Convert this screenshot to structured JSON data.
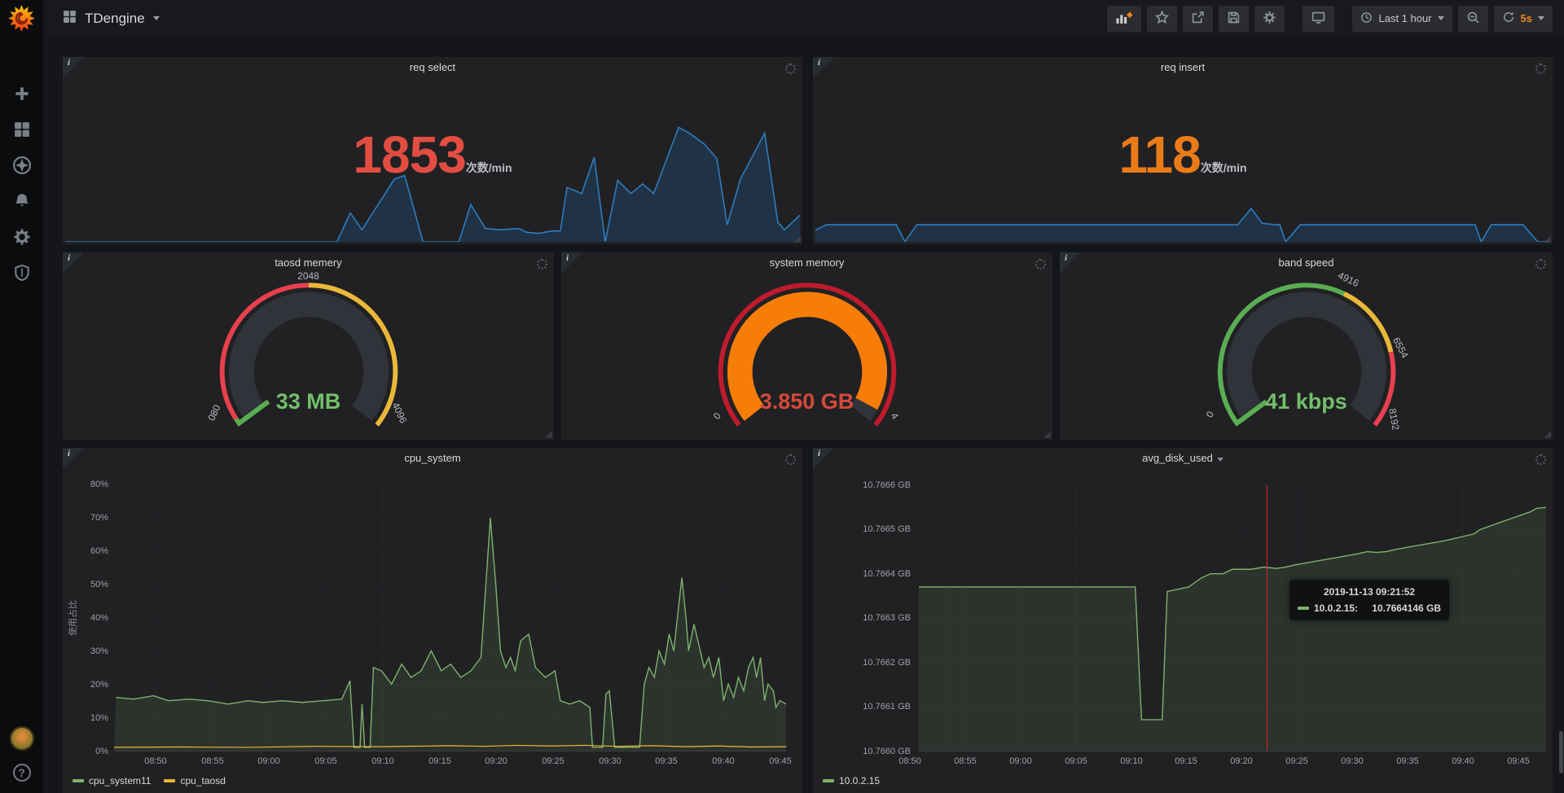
{
  "glyphs": {
    "info": "i",
    "help": "?"
  },
  "nav": {
    "title": "TDengine",
    "time_range": "Last 1 hour",
    "refresh_interval": "5s",
    "toolbar_icons": [
      "add-panel",
      "star",
      "share",
      "save",
      "settings",
      "cycle-view",
      "clock",
      "zoom-out",
      "refresh"
    ]
  },
  "sidebar": {
    "icons": [
      "grafana-logo",
      "plus",
      "dashboards-grid",
      "explore-compass",
      "alerting-bell",
      "configuration-gear",
      "server-admin-shield",
      "user-avatar",
      "help"
    ]
  },
  "colors": {
    "red": "#e24d42",
    "orange": "#eb7b18",
    "green": "#73bf69",
    "series_green": "#7eb26d",
    "yellow": "#eab839",
    "blue_line": "#2d7cbf",
    "gauge_red": "#e8404e",
    "gauge_orange": "#f77d09",
    "crosshair_red": "#e02424"
  },
  "panels": {
    "req_select": {
      "title": "req select",
      "value": "1853",
      "unit": "次数/min",
      "value_color": "#e24d42",
      "spark": {
        "ylim": [
          0,
          8400
        ],
        "points": [
          [
            0,
            0
          ],
          [
            37,
            0
          ],
          [
            38.8,
            2016
          ],
          [
            40.4,
            840
          ],
          [
            44.8,
            4368
          ],
          [
            46.2,
            4620
          ],
          [
            48.7,
            0
          ],
          [
            53.6,
            0
          ],
          [
            55.2,
            2604
          ],
          [
            57.2,
            924
          ],
          [
            59.2,
            840
          ],
          [
            61.8,
            924
          ],
          [
            62.7,
            672
          ],
          [
            64.4,
            588
          ],
          [
            66.2,
            756
          ],
          [
            67.4,
            756
          ],
          [
            68.3,
            3780
          ],
          [
            69.2,
            3612
          ],
          [
            70.3,
            3360
          ],
          [
            72,
            5880
          ],
          [
            73.5,
            0
          ],
          [
            75.2,
            4284
          ],
          [
            77,
            3360
          ],
          [
            78.6,
            4032
          ],
          [
            80.1,
            3360
          ],
          [
            83.5,
            7980
          ],
          [
            85,
            7560
          ],
          [
            87,
            6804
          ],
          [
            88.7,
            5796
          ],
          [
            90.1,
            1176
          ],
          [
            91.9,
            4368
          ],
          [
            95.2,
            7560
          ],
          [
            97,
            1344
          ],
          [
            97.9,
            840
          ],
          [
            100,
            1853
          ]
        ]
      }
    },
    "req_insert": {
      "title": "req insert",
      "value": "118",
      "unit": "次数/min",
      "value_color": "#eb7b18",
      "spark": {
        "ylim": [
          0,
          830
        ],
        "points": [
          [
            0,
            80
          ],
          [
            1.5,
            118
          ],
          [
            11,
            118
          ],
          [
            12.2,
            0
          ],
          [
            13.8,
            118
          ],
          [
            57.5,
            118
          ],
          [
            59.3,
            230
          ],
          [
            60.8,
            128
          ],
          [
            62.5,
            118
          ],
          [
            63.2,
            118
          ],
          [
            64,
            0
          ],
          [
            66,
            118
          ],
          [
            89.8,
            118
          ],
          [
            90.6,
            0
          ],
          [
            92,
            118
          ],
          [
            96.3,
            118
          ],
          [
            98.3,
            0
          ],
          [
            100,
            0
          ]
        ]
      }
    },
    "taosd_memory": {
      "title": "taosd memery",
      "value": "33 MB",
      "value_color": "#73bf69",
      "scale": {
        "top": "2048",
        "left": "080",
        "right": "4096"
      }
    },
    "system_memory": {
      "title": "system memory",
      "value": "3.850 GB",
      "value_color": "#d44a3a",
      "scale": {
        "min": "0",
        "max": "4"
      }
    },
    "band_speed": {
      "title": "band speed",
      "value": "41 kbps",
      "value_color": "#73bf69",
      "scale": {
        "min": "0",
        "t1": "4916",
        "t2": "6554",
        "max": "8192"
      }
    },
    "cpu_system": {
      "title": "cpu_system",
      "y_axis_label": "使用占比",
      "yticks": [
        "80%",
        "70%",
        "60%",
        "50%",
        "40%",
        "30%",
        "20%",
        "10%",
        "0%"
      ],
      "xticks": [
        "08:50",
        "08:55",
        "09:00",
        "09:05",
        "09:10",
        "09:15",
        "09:20",
        "09:25",
        "09:30",
        "09:35",
        "09:40",
        "09:45"
      ],
      "ylim": [
        0,
        80
      ],
      "legend": [
        {
          "label": "cpu_system11",
          "color": "#7eb26d"
        },
        {
          "label": "cpu_taosd",
          "color": "#eab839"
        }
      ],
      "series": [
        {
          "name": "cpu_system11",
          "points": [
            [
              0.3,
              16
            ],
            [
              2.9,
              15.5
            ],
            [
              5.9,
              16.5
            ],
            [
              8.1,
              15
            ],
            [
              11.1,
              15.5
            ],
            [
              14,
              15
            ],
            [
              17,
              14
            ],
            [
              19.9,
              15
            ],
            [
              22.1,
              14.5
            ],
            [
              25.1,
              15
            ],
            [
              28,
              14.5
            ],
            [
              31,
              15
            ],
            [
              33.9,
              15.5
            ],
            [
              35.1,
              21
            ],
            [
              35.7,
              1
            ],
            [
              36.6,
              1
            ],
            [
              36.9,
              14
            ],
            [
              37.3,
              1
            ],
            [
              38.1,
              1
            ],
            [
              38.6,
              25
            ],
            [
              39.8,
              24
            ],
            [
              41.3,
              20
            ],
            [
              42.8,
              26
            ],
            [
              44.2,
              22
            ],
            [
              45.7,
              24
            ],
            [
              47.2,
              30
            ],
            [
              48.7,
              24
            ],
            [
              50.1,
              26
            ],
            [
              51.6,
              22
            ],
            [
              53.1,
              24
            ],
            [
              54.6,
              28
            ],
            [
              55.6,
              58
            ],
            [
              56,
              70
            ],
            [
              56.8,
              50
            ],
            [
              57.5,
              30
            ],
            [
              58.3,
              25
            ],
            [
              59,
              28
            ],
            [
              59.7,
              24
            ],
            [
              60.5,
              33
            ],
            [
              61.7,
              35
            ],
            [
              62.7,
              25
            ],
            [
              64.2,
              22
            ],
            [
              65.6,
              24
            ],
            [
              66.4,
              15
            ],
            [
              67.8,
              14
            ],
            [
              69.3,
              15
            ],
            [
              70.8,
              13
            ],
            [
              71.2,
              1
            ],
            [
              72.7,
              1
            ],
            [
              73.2,
              17
            ],
            [
              73.7,
              18
            ],
            [
              74.5,
              1
            ],
            [
              78.2,
              1
            ],
            [
              78.9,
              20
            ],
            [
              79.6,
              25
            ],
            [
              80.4,
              22
            ],
            [
              81.1,
              30
            ],
            [
              81.9,
              26
            ],
            [
              82.6,
              35
            ],
            [
              83.3,
              30
            ],
            [
              84.1,
              45
            ],
            [
              84.5,
              52
            ],
            [
              85.1,
              40
            ],
            [
              85.5,
              30
            ],
            [
              86.3,
              38
            ],
            [
              87,
              32
            ],
            [
              87.8,
              25
            ],
            [
              88.5,
              28
            ],
            [
              89.2,
              22
            ],
            [
              90,
              28
            ],
            [
              90.7,
              15
            ],
            [
              91.4,
              20
            ],
            [
              92.2,
              16
            ],
            [
              92.9,
              22
            ],
            [
              93.7,
              18
            ],
            [
              94.4,
              25
            ],
            [
              95.1,
              28
            ],
            [
              95.6,
              22
            ],
            [
              96.2,
              28
            ],
            [
              96.8,
              15
            ],
            [
              97.3,
              20
            ],
            [
              98.1,
              18
            ],
            [
              98.5,
              13
            ],
            [
              99.1,
              15
            ],
            [
              100,
              14
            ]
          ]
        },
        {
          "name": "cpu_taosd",
          "points": [
            [
              0,
              1
            ],
            [
              10,
              1.1
            ],
            [
              20,
              1
            ],
            [
              30,
              1.3
            ],
            [
              40,
              1.2
            ],
            [
              50,
              1.5
            ],
            [
              55,
              1.3
            ],
            [
              60,
              1.6
            ],
            [
              65,
              1.4
            ],
            [
              70,
              1.6
            ],
            [
              75,
              1.3
            ],
            [
              80,
              1.5
            ],
            [
              85,
              1.2
            ],
            [
              90,
              1.4
            ],
            [
              95,
              1.1
            ],
            [
              100,
              1.2
            ]
          ]
        }
      ]
    },
    "avg_disk_used": {
      "title": "avg_disk_used",
      "yticks": [
        "10.7666 GB",
        "10.7665 GB",
        "10.7664 GB",
        "10.7663 GB",
        "10.7662 GB",
        "10.7661 GB",
        "10.7660 GB"
      ],
      "xticks": [
        "08:50",
        "08:55",
        "09:00",
        "09:05",
        "09:10",
        "09:15",
        "09:20",
        "09:25",
        "09:30",
        "09:35",
        "09:40",
        "09:45"
      ],
      "ylim": [
        10.766,
        10.7666
      ],
      "legend": [
        {
          "label": "10.0.2.15",
          "color": "#7eb26d"
        }
      ],
      "tooltip": {
        "time": "2019-11-13 09:21:52",
        "series": "10.0.2.15:",
        "value": "10.7664146 GB"
      },
      "series": [
        {
          "name": "10.0.2.15",
          "points": [
            [
              0,
              10.76637
            ],
            [
              20,
              10.76637
            ],
            [
              30,
              10.76637
            ],
            [
              34.5,
              10.76637
            ],
            [
              35.5,
              10.76607
            ],
            [
              38.8,
              10.76607
            ],
            [
              39.6,
              10.76636
            ],
            [
              43,
              10.76637
            ],
            [
              45,
              10.76639
            ],
            [
              46.5,
              10.7664
            ],
            [
              48.5,
              10.7664
            ],
            [
              50,
              10.76641
            ],
            [
              53,
              10.76641
            ],
            [
              55,
              10.766415
            ],
            [
              57,
              10.766412
            ],
            [
              58.4,
              10.7664146
            ],
            [
              60,
              10.76642
            ],
            [
              62,
              10.766425
            ],
            [
              64,
              10.76643
            ],
            [
              66,
              10.766435
            ],
            [
              68,
              10.76644
            ],
            [
              70,
              10.766445
            ],
            [
              71.5,
              10.76645
            ],
            [
              73,
              10.766448
            ],
            [
              74.5,
              10.76645
            ],
            [
              76,
              10.766455
            ],
            [
              78,
              10.76646
            ],
            [
              80,
              10.766465
            ],
            [
              82,
              10.76647
            ],
            [
              84,
              10.766475
            ],
            [
              85.5,
              10.76648
            ],
            [
              87,
              10.766485
            ],
            [
              88.5,
              10.76649
            ],
            [
              89.5,
              10.7665
            ],
            [
              90.5,
              10.766505
            ],
            [
              91.5,
              10.76651
            ],
            [
              92.5,
              10.766515
            ],
            [
              93.5,
              10.76652
            ],
            [
              94.5,
              10.766525
            ],
            [
              95.5,
              10.76653
            ],
            [
              96.5,
              10.766535
            ],
            [
              97.5,
              10.76654
            ],
            [
              98.5,
              10.766548
            ],
            [
              100,
              10.76655
            ]
          ]
        }
      ]
    }
  }
}
